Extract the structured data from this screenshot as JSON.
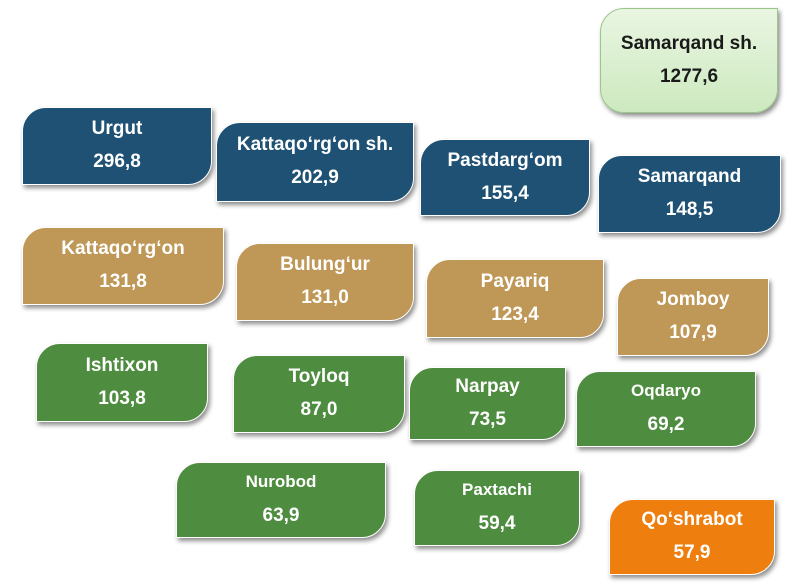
{
  "colors": {
    "navy": "#1f5174",
    "tan": "#bf9756",
    "green": "#4e8c3f",
    "orange": "#ee7f0e",
    "mint": "#d6eecb"
  },
  "tiles": [
    {
      "name": "Samarqand sh.",
      "value": "1277,6"
    },
    {
      "name": "Urgut",
      "value": "296,8"
    },
    {
      "name": "Kattaqo‘rg‘on sh.",
      "value": "202,9"
    },
    {
      "name": "Pastdarg‘om",
      "value": "155,4"
    },
    {
      "name": "Samarqand",
      "value": "148,5"
    },
    {
      "name": "Kattaqo‘rg‘on",
      "value": "131,8"
    },
    {
      "name": "Bulung‘ur",
      "value": "131,0"
    },
    {
      "name": "Payariq",
      "value": "123,4"
    },
    {
      "name": "Jomboy",
      "value": "107,9"
    },
    {
      "name": "Ishtixon",
      "value": "103,8"
    },
    {
      "name": "Toyloq",
      "value": "87,0"
    },
    {
      "name": "Narpay",
      "value": "73,5"
    },
    {
      "name": "Oqdaryo",
      "value": "69,2"
    },
    {
      "name": "Nurobod",
      "value": "63,9"
    },
    {
      "name": "Paxtachi",
      "value": "59,4"
    },
    {
      "name": "Qo‘shrabot",
      "value": "57,9"
    }
  ]
}
